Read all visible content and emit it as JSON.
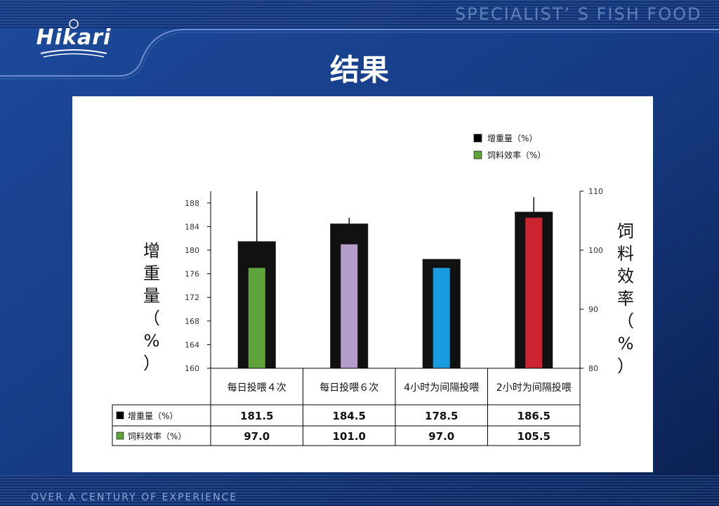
{
  "header": {
    "brand": "Hikari",
    "tagline": "SPECIALIST’ S  FISH FOOD",
    "title": "结果"
  },
  "footer": {
    "text": "OVER A CENTURY OF EXPERIENCE"
  },
  "chart_data": {
    "type": "bar",
    "categories": [
      "每日投喂４次",
      "每日投喂６次",
      "4小时为间隔投喂",
      "2小时为间隔投喂"
    ],
    "series": [
      {
        "name": "增重量（%）",
        "axis": "left",
        "values": [
          181.5,
          184.5,
          178.5,
          186.5
        ],
        "error_upper": [
          190.5,
          185.5,
          null,
          189.0
        ]
      },
      {
        "name": "饲料效率（%）",
        "axis": "right",
        "values": [
          97.0,
          101.0,
          97.0,
          105.5
        ]
      }
    ],
    "left_axis": {
      "label": "增重量（%）",
      "ylim": [
        160,
        190
      ],
      "ticks": [
        160,
        164,
        168,
        172,
        176,
        180,
        184,
        188
      ]
    },
    "right_axis": {
      "label": "饲料效率（%）",
      "ylim": [
        80,
        110
      ],
      "ticks": [
        80,
        90,
        100,
        110
      ]
    },
    "inner_bar_colors": [
      "#5fa33c",
      "#b49ccb",
      "#1a9be0",
      "#cc2431"
    ],
    "outer_bar_color": "#111111",
    "legend": {
      "placement": "top-right",
      "items": [
        {
          "label": "增重量（%）",
          "color": "#000000"
        },
        {
          "label": "饲料效率（%）",
          "color": "#5fa33c"
        }
      ]
    },
    "table": {
      "rows": [
        {
          "label": "增重量（%）",
          "color": "#000000",
          "values": [
            "181.5",
            "184.5",
            "178.5",
            "186.5"
          ]
        },
        {
          "label": "饲料效率（%）",
          "color": "#5fa33c",
          "values": [
            "97.0",
            "101.0",
            "97.0",
            "105.5"
          ]
        }
      ]
    }
  }
}
